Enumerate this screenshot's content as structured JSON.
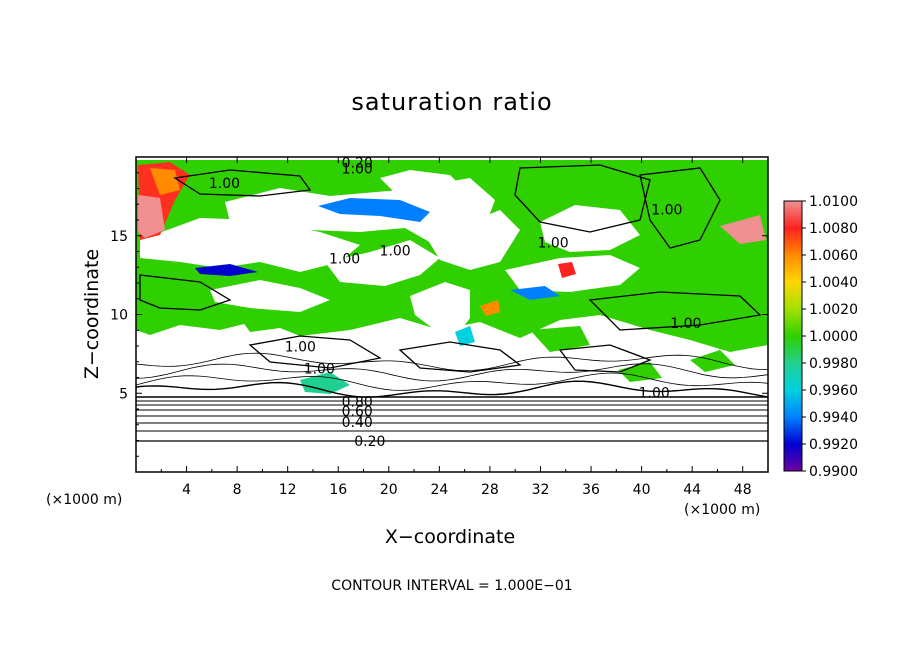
{
  "chart_data": {
    "type": "heatmap",
    "title": "saturation ratio",
    "xlabel": "X−coordinate",
    "ylabel": "Z−coordinate",
    "x_unit_left": "(×1000 m)",
    "x_unit_right": "(×1000 m)",
    "footnote": "CONTOUR INTERVAL = 1.000E−01",
    "xlim": [
      0,
      50
    ],
    "ylim": [
      0,
      20
    ],
    "xticks": [
      4,
      8,
      12,
      16,
      20,
      24,
      28,
      32,
      36,
      40,
      44,
      48
    ],
    "xtick_labels": [
      "4",
      "8",
      "12",
      "16",
      "20",
      "24",
      "28",
      "32",
      "36",
      "40",
      "44",
      "48"
    ],
    "yticks": [
      5,
      10,
      15
    ],
    "ytick_labels": [
      "5",
      "10",
      "15"
    ],
    "colorbar": {
      "labels": [
        "1.0100",
        "1.0080",
        "1.0060",
        "1.0040",
        "1.0020",
        "1.0000",
        "0.9980",
        "0.9960",
        "0.9940",
        "0.9920",
        "0.9900"
      ],
      "colors": [
        "#f09090",
        "#ff2020",
        "#ff8c00",
        "#ffd700",
        "#a0e000",
        "#30d000",
        "#20d090",
        "#00d0e0",
        "#0080ff",
        "#0000d0",
        "#7000a0"
      ]
    },
    "contour_labels": [
      {
        "text": "0.20",
        "x": 18.5,
        "y": 1.9
      },
      {
        "text": "0.40",
        "x": 17.5,
        "y": 3.1
      },
      {
        "text": "0.60",
        "x": 17.5,
        "y": 3.8
      },
      {
        "text": "0.80",
        "x": 17.5,
        "y": 4.4
      },
      {
        "text": "1.00",
        "x": 13.0,
        "y": 7.9
      },
      {
        "text": "1.00",
        "x": 14.5,
        "y": 6.5
      },
      {
        "text": "1.00",
        "x": 41.0,
        "y": 5.0
      },
      {
        "text": "1.00",
        "x": 43.5,
        "y": 9.4
      },
      {
        "text": "1.00",
        "x": 7.0,
        "y": 18.3
      },
      {
        "text": "1.00",
        "x": 16.5,
        "y": 13.5
      },
      {
        "text": "1.00",
        "x": 20.5,
        "y": 14.0
      },
      {
        "text": "1.00",
        "x": 33.0,
        "y": 14.5
      },
      {
        "text": "1.00",
        "x": 42.0,
        "y": 16.6
      },
      {
        "text": "0.20",
        "x": 17.5,
        "y": 19.6
      },
      {
        "text": "1.00",
        "x": 17.5,
        "y": 19.2
      }
    ]
  }
}
